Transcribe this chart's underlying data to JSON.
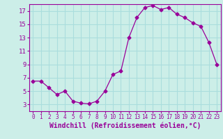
{
  "x": [
    0,
    1,
    2,
    3,
    4,
    5,
    6,
    7,
    8,
    9,
    10,
    11,
    12,
    13,
    14,
    15,
    16,
    17,
    18,
    19,
    20,
    21,
    22,
    23
  ],
  "y": [
    6.5,
    6.5,
    5.5,
    4.5,
    5.0,
    3.5,
    3.2,
    3.1,
    3.5,
    5.0,
    7.5,
    8.0,
    13.0,
    16.0,
    17.5,
    17.8,
    17.2,
    17.5,
    16.5,
    16.0,
    15.2,
    14.7,
    12.3,
    9.0
  ],
  "line_color": "#990099",
  "marker": "D",
  "marker_size": 2,
  "bg_color": "#cceee8",
  "grid_color": "#aadddd",
  "xlabel": "Windchill (Refroidissement éolien,°C)",
  "tick_color": "#990099",
  "ylim": [
    2,
    18
  ],
  "xlim": [
    -0.5,
    23.5
  ],
  "yticks": [
    3,
    5,
    7,
    9,
    11,
    13,
    15,
    17
  ],
  "xticks": [
    0,
    1,
    2,
    3,
    4,
    5,
    6,
    7,
    8,
    9,
    10,
    11,
    12,
    13,
    14,
    15,
    16,
    17,
    18,
    19,
    20,
    21,
    22,
    23
  ]
}
